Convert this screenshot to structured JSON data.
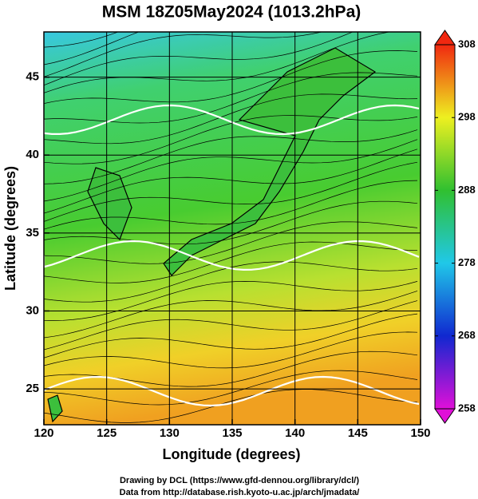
{
  "chart_data": {
    "type": "map",
    "title": "MSM 18Z05May2024 (1013.2hPa)",
    "x_label": "Longitude (degrees)",
    "y_label": "Latitude  (degrees)",
    "xlim": [
      120,
      150
    ],
    "xticks": [
      120,
      125,
      130,
      135,
      140,
      145,
      150
    ],
    "ylim": [
      22.7,
      47.9
    ],
    "yticks": [
      25,
      30,
      35,
      40,
      45
    ],
    "grid": true,
    "colorbar": {
      "lim": [
        258,
        308
      ],
      "ticks": [
        258,
        268,
        278,
        288,
        298,
        308
      ],
      "colors": [
        "#e010d8",
        "#1028d0",
        "#20c8e8",
        "#30c030",
        "#eef020",
        "#f02810"
      ]
    }
  },
  "footer": {
    "lines": [
      "Drawing by DCL (https://www.gfd-dennou.org/library/dcl/)",
      "Data from http://database.rish.kyoto-u.ac.jp/arch/jmadata/"
    ]
  }
}
